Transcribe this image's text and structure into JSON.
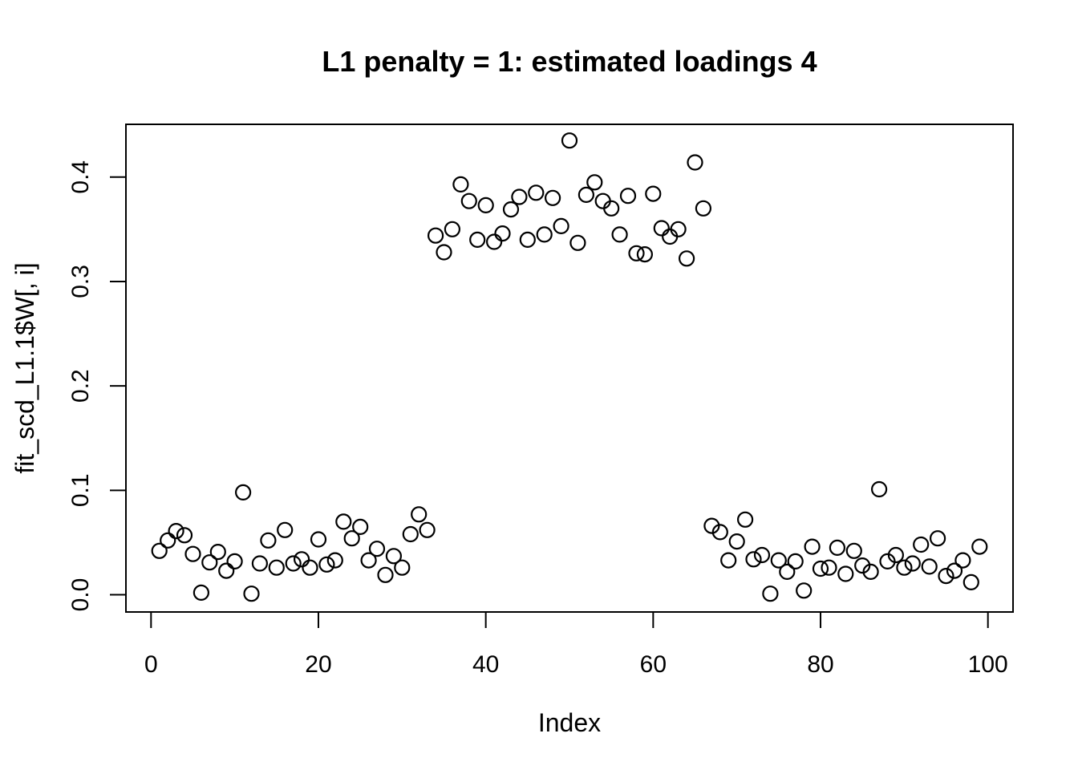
{
  "chart_data": {
    "type": "scatter",
    "title": "L1 penalty = 1: estimated loadings 4",
    "xlabel": "Index",
    "ylabel": "fit_scd_L1.1$W[, i]",
    "marker": "open-circle",
    "marker_color": "#000000",
    "background_color": "#ffffff",
    "grid": false,
    "legend": null,
    "x_ticks": [
      0,
      20,
      40,
      60,
      80,
      100
    ],
    "y_ticks": [
      0,
      0.1,
      0.2,
      0.3,
      0.4
    ],
    "y_tick_labels": [
      "0.0",
      "0.1",
      "0.2",
      "0.3",
      "0.4"
    ],
    "xlim": [
      -3.0,
      103.0
    ],
    "ylim": [
      -0.0165,
      0.4505
    ],
    "x": [
      1,
      2,
      3,
      4,
      5,
      6,
      7,
      8,
      9,
      10,
      11,
      12,
      13,
      14,
      15,
      16,
      17,
      18,
      19,
      20,
      21,
      22,
      23,
      24,
      25,
      26,
      27,
      28,
      29,
      30,
      31,
      32,
      33,
      34,
      35,
      36,
      37,
      38,
      39,
      40,
      41,
      42,
      43,
      44,
      45,
      46,
      47,
      48,
      49,
      50,
      51,
      52,
      53,
      54,
      55,
      56,
      57,
      58,
      59,
      60,
      61,
      62,
      63,
      64,
      65,
      66,
      67,
      68,
      69,
      70,
      71,
      72,
      73,
      74,
      75,
      76,
      77,
      78,
      79,
      80,
      81,
      82,
      83,
      84,
      85,
      86,
      87,
      88,
      89,
      90,
      91,
      92,
      93,
      94,
      95,
      96,
      97,
      98,
      99
    ],
    "y": [
      0.042,
      0.052,
      0.061,
      0.057,
      0.039,
      0.002,
      0.031,
      0.041,
      0.023,
      0.032,
      0.098,
      0.001,
      0.03,
      0.052,
      0.026,
      0.062,
      0.03,
      0.034,
      0.026,
      0.053,
      0.029,
      0.033,
      0.07,
      0.054,
      0.065,
      0.033,
      0.044,
      0.019,
      0.037,
      0.026,
      0.058,
      0.077,
      0.062,
      0.344,
      0.328,
      0.35,
      0.393,
      0.377,
      0.34,
      0.373,
      0.338,
      0.346,
      0.369,
      0.381,
      0.34,
      0.385,
      0.345,
      0.38,
      0.353,
      0.435,
      0.337,
      0.383,
      0.395,
      0.377,
      0.37,
      0.345,
      0.382,
      0.327,
      0.326,
      0.384,
      0.351,
      0.343,
      0.35,
      0.322,
      0.414,
      0.37,
      0.066,
      0.06,
      0.033,
      0.051,
      0.072,
      0.034,
      0.038,
      0.001,
      0.033,
      0.022,
      0.032,
      0.004,
      0.046,
      0.025,
      0.026,
      0.045,
      0.02,
      0.042,
      0.028,
      0.022,
      0.101,
      0.032,
      0.038,
      0.026,
      0.03,
      0.048,
      0.027,
      0.054,
      0.018,
      0.023,
      0.033,
      0.012,
      0.046
    ]
  }
}
